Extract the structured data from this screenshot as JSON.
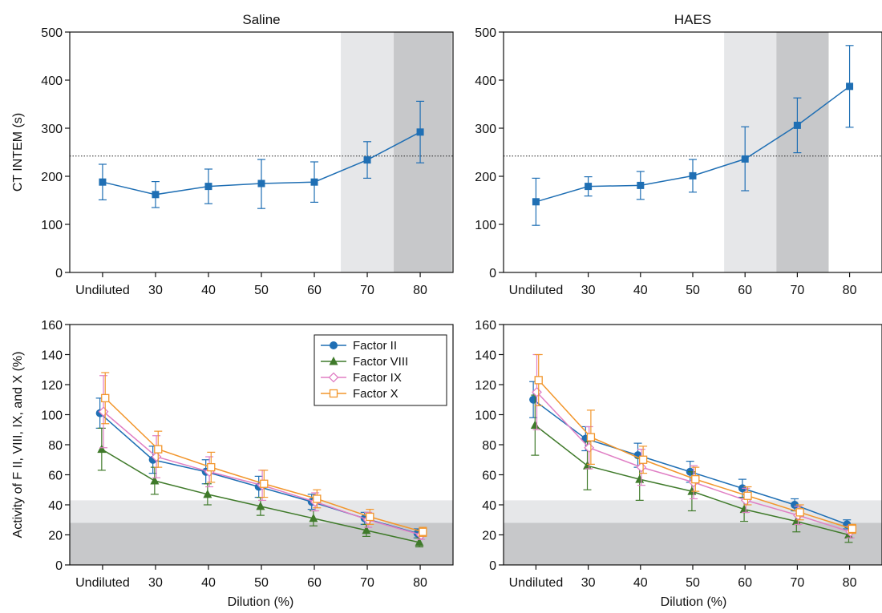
{
  "figure": {
    "x_tick_labels": [
      "Undiluted",
      "30",
      "40",
      "50",
      "60",
      "70",
      "80"
    ],
    "x_axis_label": "Dilution (%)",
    "ct_axis_label": "CT INTEM (s)",
    "factor_axis_label": "Activity of F II, VIII, IX, and X (%)"
  },
  "colors": {
    "ct_line": "#1f6fb4",
    "band_light": "#e6e7e9",
    "band_dark": "#c7c8ca",
    "factor_ii": "#1f6fb4",
    "factor_viii": "#3f7a2a",
    "factor_ix": "#e07fc4",
    "factor_x": "#f2962c"
  },
  "chart_data": [
    {
      "id": "ct-saline",
      "type": "line",
      "title": "Saline",
      "categories": [
        "Undiluted",
        "30",
        "40",
        "50",
        "60",
        "70",
        "80"
      ],
      "ylabel": "CT INTEM (s)",
      "xlabel": "",
      "ylim": [
        0,
        500
      ],
      "yticks": [
        0,
        100,
        200,
        300,
        400,
        500
      ],
      "reference_line": 242,
      "shaded_regions": [
        {
          "from": 4.5,
          "to": 5.5,
          "shade": "light"
        },
        {
          "from": 5.5,
          "to": 6.6,
          "shade": "dark"
        }
      ],
      "series": [
        {
          "key": "ct",
          "values": [
            188,
            162,
            179,
            185,
            188,
            234,
            292
          ],
          "err_low": [
            151,
            135,
            143,
            133,
            146,
            196,
            228
          ],
          "err_high": [
            225,
            189,
            215,
            235,
            230,
            272,
            356
          ],
          "marker": "square-filled"
        }
      ]
    },
    {
      "id": "ct-haes",
      "type": "line",
      "title": "HAES",
      "categories": [
        "Undiluted",
        "30",
        "40",
        "50",
        "60",
        "70",
        "80"
      ],
      "ylabel": "",
      "xlabel": "",
      "ylim": [
        0,
        500
      ],
      "yticks": [
        0,
        100,
        200,
        300,
        400,
        500
      ],
      "reference_line": 242,
      "shaded_regions": [
        {
          "from": 3.6,
          "to": 4.6,
          "shade": "light"
        },
        {
          "from": 4.6,
          "to": 5.6,
          "shade": "dark"
        }
      ],
      "series": [
        {
          "key": "ct",
          "values": [
            147,
            179,
            181,
            201,
            236,
            306,
            387
          ],
          "err_low": [
            98,
            159,
            152,
            167,
            170,
            249,
            302
          ],
          "err_high": [
            196,
            199,
            210,
            235,
            303,
            363,
            472
          ],
          "marker": "square-filled"
        }
      ]
    },
    {
      "id": "factor-saline",
      "type": "line",
      "title": "",
      "categories": [
        "Undiluted",
        "30",
        "40",
        "50",
        "60",
        "70",
        "80"
      ],
      "ylabel": "Activity of F II, VIII, IX, and X (%)",
      "xlabel": "Dilution (%)",
      "ylim": [
        0,
        160
      ],
      "yticks": [
        0,
        20,
        40,
        60,
        80,
        100,
        120,
        140,
        160
      ],
      "shaded_regions": [
        {
          "y_from": 28,
          "y_to": 43,
          "shade": "light"
        },
        {
          "y_from": 0,
          "y_to": 28,
          "shade": "dark"
        }
      ],
      "legend": {
        "placement": "top-right"
      },
      "series": [
        {
          "key": "factor_ii",
          "name": "Factor II",
          "marker": "circle-filled",
          "values": [
            101,
            70,
            62,
            52,
            42,
            31,
            21
          ],
          "err": [
            10,
            9,
            8,
            7,
            5,
            4,
            3
          ]
        },
        {
          "key": "factor_viii",
          "name": "Factor VIII",
          "marker": "triangle-filled",
          "values": [
            77,
            56,
            47,
            39,
            31,
            23,
            15
          ],
          "err": [
            14,
            9,
            7,
            6,
            5,
            4,
            3
          ]
        },
        {
          "key": "factor_ix",
          "name": "Factor IX",
          "marker": "diamond-open",
          "values": [
            102,
            72,
            62,
            53,
            42,
            30,
            20
          ],
          "err": [
            24,
            14,
            10,
            10,
            6,
            5,
            3
          ]
        },
        {
          "key": "factor_x",
          "name": "Factor X",
          "marker": "square-open",
          "values": [
            111,
            77,
            65,
            54,
            44,
            32,
            22
          ],
          "err": [
            17,
            12,
            10,
            9,
            6,
            5,
            3
          ]
        }
      ]
    },
    {
      "id": "factor-haes",
      "type": "line",
      "title": "",
      "categories": [
        "Undiluted",
        "30",
        "40",
        "50",
        "60",
        "70",
        "80"
      ],
      "ylabel": "",
      "xlabel": "Dilution (%)",
      "ylim": [
        0,
        160
      ],
      "yticks": [
        0,
        20,
        40,
        60,
        80,
        100,
        120,
        140,
        160
      ],
      "shaded_regions": [
        {
          "y_from": 28,
          "y_to": 43,
          "shade": "light"
        },
        {
          "y_from": 0,
          "y_to": 28,
          "shade": "dark"
        }
      ],
      "series": [
        {
          "key": "factor_ii",
          "name": "Factor II",
          "marker": "circle-filled",
          "values": [
            110,
            84,
            73,
            62,
            51,
            40,
            27
          ],
          "err": [
            12,
            8,
            8,
            7,
            6,
            4,
            3
          ]
        },
        {
          "key": "factor_viii",
          "name": "Factor VIII",
          "marker": "triangle-filled",
          "values": [
            93,
            66,
            57,
            49,
            37,
            29,
            20
          ],
          "err": [
            20,
            16,
            14,
            13,
            8,
            7,
            5
          ]
        },
        {
          "key": "factor_ix",
          "name": "Factor IX",
          "marker": "diamond-open",
          "values": [
            115,
            78,
            65,
            55,
            43,
            33,
            22
          ],
          "err": [
            25,
            14,
            12,
            11,
            8,
            6,
            4
          ]
        },
        {
          "key": "factor_x",
          "name": "Factor X",
          "marker": "square-open",
          "values": [
            123,
            85,
            70,
            57,
            46,
            35,
            24
          ],
          "err": [
            17,
            18,
            9,
            8,
            6,
            5,
            3
          ]
        }
      ]
    }
  ]
}
